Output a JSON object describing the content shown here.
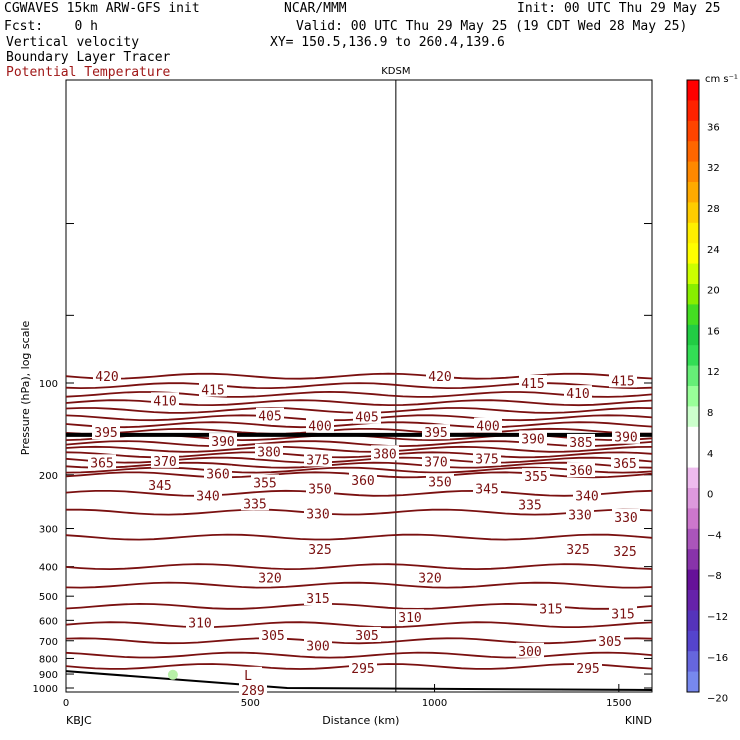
{
  "header": {
    "model": "CGWAVES 15km ARW-GFS init",
    "org": "NCAR/MMM",
    "init": "Init: 00 UTC Thu 29 May 25",
    "fcst": "Fcst:    0 h",
    "valid": "Valid: 00 UTC Thu 29 May 25 (19 CDT Wed 28 May 25)",
    "field1": "Vertical velocity",
    "xy": "XY= 150.5,136.9 to 260.4,139.6",
    "field2": "Boundary Layer Tracer",
    "field3": "Potential Temperature"
  },
  "chart_data": {
    "type": "contour-cross-section",
    "station_mid": "KDSM",
    "xlabel": "Distance (km)",
    "ylabel": "Pressure (hPa), log scale",
    "x_ticks": [
      "0",
      "500",
      "1000",
      "1500"
    ],
    "x_tick_values": [
      0,
      500,
      1000,
      1500
    ],
    "xlim": [
      0,
      1590
    ],
    "y_ticks": [
      "100",
      "200",
      "300",
      "400",
      "500",
      "600",
      "700",
      "800",
      "900",
      "1000"
    ],
    "y_tick_values": [
      100,
      200,
      300,
      400,
      500,
      600,
      700,
      800,
      900,
      1000
    ],
    "left_station": "KBJC",
    "right_station": "KIND",
    "station_mid_x": 895,
    "colorbar": {
      "unit": "cm s⁻¹",
      "labels": [
        "36",
        "32",
        "28",
        "24",
        "20",
        "16",
        "12",
        "8",
        "4",
        "0",
        "−4",
        "−8",
        "−12",
        "−16",
        "−20"
      ],
      "colors": [
        "#ff0000",
        "#ff2200",
        "#ff4400",
        "#ff6600",
        "#ff8800",
        "#ffaa00",
        "#ffcc00",
        "#ffee00",
        "#ffff00",
        "#ccff00",
        "#88ee00",
        "#44dd22",
        "#22cc44",
        "#33dd55",
        "#66ee77",
        "#99ff99",
        "#ccffcc",
        "#ffffff",
        "#ffffff",
        "#eebbee",
        "#dd99dd",
        "#cc77cc",
        "#aa55bb",
        "#8833aa",
        "#661199",
        "#6622aa",
        "#5533bb",
        "#5544cc",
        "#6666dd",
        "#7788ee"
      ]
    },
    "theta_labels": [
      {
        "v": "420",
        "x": 107,
        "p": 95
      },
      {
        "v": "410",
        "x": 165,
        "p": 114
      },
      {
        "v": "415",
        "x": 213,
        "p": 105
      },
      {
        "v": "405",
        "x": 270,
        "p": 128
      },
      {
        "v": "400",
        "x": 320,
        "p": 138
      },
      {
        "v": "405",
        "x": 367,
        "p": 129
      },
      {
        "v": "395",
        "x": 106,
        "p": 145
      },
      {
        "v": "390",
        "x": 223,
        "p": 155
      },
      {
        "v": "380",
        "x": 269,
        "p": 168
      },
      {
        "v": "375",
        "x": 318,
        "p": 178
      },
      {
        "v": "370",
        "x": 165,
        "p": 180
      },
      {
        "v": "365",
        "x": 102,
        "p": 182
      },
      {
        "v": "360",
        "x": 218,
        "p": 198
      },
      {
        "v": "355",
        "x": 265,
        "p": 212
      },
      {
        "v": "350",
        "x": 320,
        "p": 222
      },
      {
        "v": "345",
        "x": 160,
        "p": 216
      },
      {
        "v": "340",
        "x": 208,
        "p": 234
      },
      {
        "v": "335",
        "x": 255,
        "p": 248
      },
      {
        "v": "330",
        "x": 318,
        "p": 268
      },
      {
        "v": "360",
        "x": 363,
        "p": 208
      },
      {
        "v": "380",
        "x": 385,
        "p": 170
      },
      {
        "v": "420",
        "x": 440,
        "p": 95
      },
      {
        "v": "415",
        "x": 533,
        "p": 100
      },
      {
        "v": "410",
        "x": 578,
        "p": 108
      },
      {
        "v": "415",
        "x": 623,
        "p": 98
      },
      {
        "v": "395",
        "x": 436,
        "p": 145
      },
      {
        "v": "400",
        "x": 488,
        "p": 138
      },
      {
        "v": "390",
        "x": 533,
        "p": 152
      },
      {
        "v": "385",
        "x": 581,
        "p": 156
      },
      {
        "v": "390",
        "x": 626,
        "p": 150
      },
      {
        "v": "370",
        "x": 436,
        "p": 181
      },
      {
        "v": "375",
        "x": 487,
        "p": 177
      },
      {
        "v": "365",
        "x": 625,
        "p": 183
      },
      {
        "v": "360",
        "x": 581,
        "p": 193
      },
      {
        "v": "355",
        "x": 536,
        "p": 202
      },
      {
        "v": "350",
        "x": 440,
        "p": 210
      },
      {
        "v": "345",
        "x": 487,
        "p": 222
      },
      {
        "v": "340",
        "x": 587,
        "p": 234
      },
      {
        "v": "335",
        "x": 530,
        "p": 250
      },
      {
        "v": "330",
        "x": 580,
        "p": 270
      },
      {
        "v": "330",
        "x": 626,
        "p": 275
      },
      {
        "v": "325",
        "x": 320,
        "p": 350
      },
      {
        "v": "325",
        "x": 578,
        "p": 350
      },
      {
        "v": "325",
        "x": 625,
        "p": 355
      },
      {
        "v": "320",
        "x": 270,
        "p": 435
      },
      {
        "v": "320",
        "x": 430,
        "p": 435
      },
      {
        "v": "315",
        "x": 318,
        "p": 507
      },
      {
        "v": "315",
        "x": 551,
        "p": 548
      },
      {
        "v": "315",
        "x": 623,
        "p": 570
      },
      {
        "v": "310",
        "x": 200,
        "p": 610
      },
      {
        "v": "310",
        "x": 410,
        "p": 586
      },
      {
        "v": "305",
        "x": 273,
        "p": 670
      },
      {
        "v": "305",
        "x": 367,
        "p": 670
      },
      {
        "v": "305",
        "x": 610,
        "p": 700
      },
      {
        "v": "300",
        "x": 318,
        "p": 725
      },
      {
        "v": "300",
        "x": 530,
        "p": 755
      },
      {
        "v": "295",
        "x": 363,
        "p": 860
      },
      {
        "v": "295",
        "x": 588,
        "p": 860
      },
      {
        "v": "289",
        "x": 253,
        "p": 1015
      },
      {
        "v": "L",
        "x": 248,
        "p": 905
      }
    ]
  }
}
